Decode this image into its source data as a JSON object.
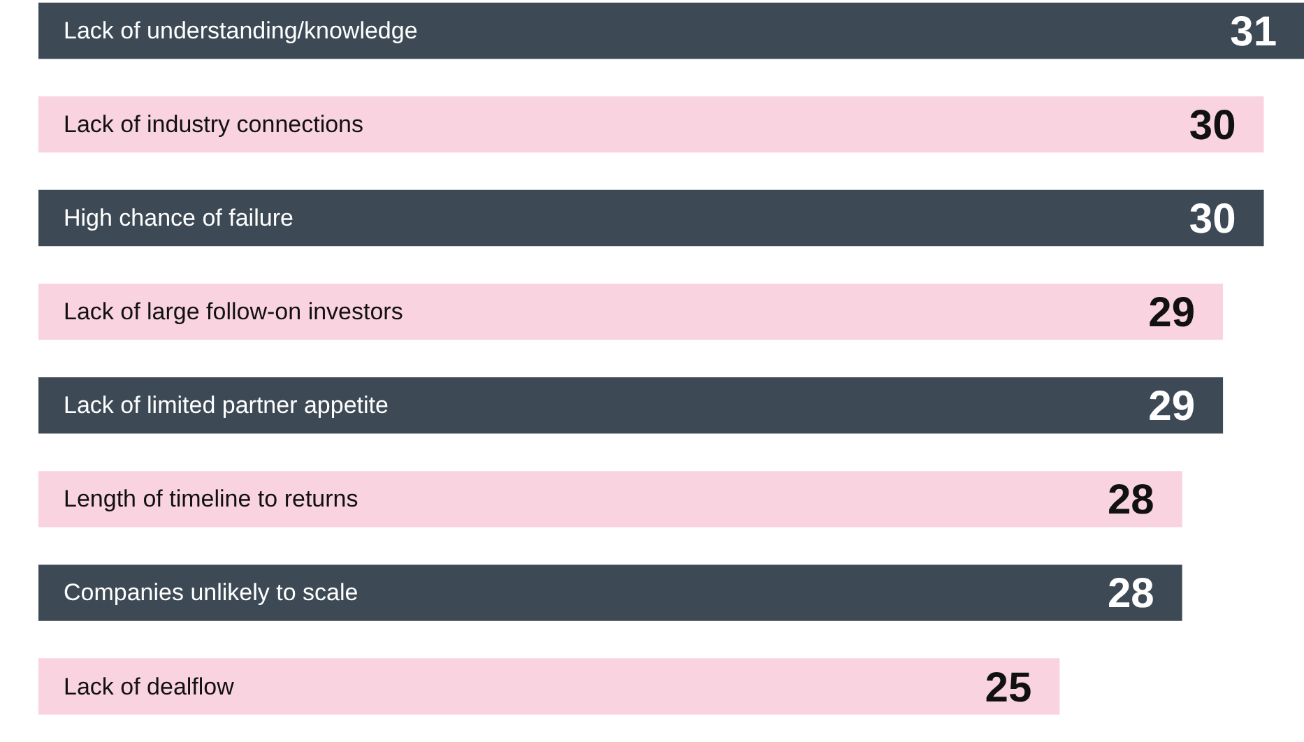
{
  "chart_data": {
    "type": "bar",
    "orientation": "horizontal",
    "data_labels": true,
    "categories": [
      "Lack of understanding/knowledge",
      "Lack of industry connections",
      "High chance of failure",
      "Lack of large follow-on investors",
      "Lack of limited partner appetite",
      "Length of timeline to returns",
      "Companies unlikely to scale",
      "Lack of dealflow"
    ],
    "values": [
      31,
      30,
      30,
      29,
      29,
      28,
      28,
      25
    ],
    "colors": [
      "#3d4a55",
      "#f9d3df",
      "#3d4a55",
      "#f9d3df",
      "#3d4a55",
      "#f9d3df",
      "#3d4a55",
      "#f9d3df"
    ]
  }
}
